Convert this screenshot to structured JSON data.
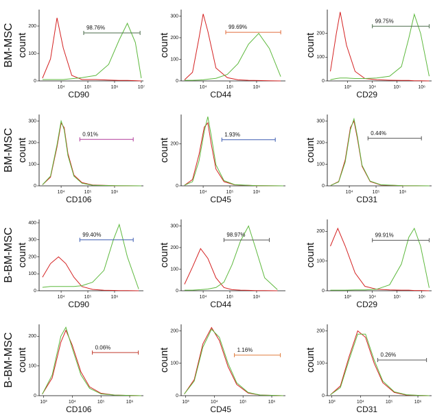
{
  "chart_data": [
    {
      "type": "line",
      "row_label": "BM-MSC",
      "ylabel": "count",
      "xlabel": "CD90",
      "xscale": "log",
      "xlim": [
        1500,
        12000000
      ],
      "ylim": [
        0,
        260
      ],
      "xticks": [
        {
          "value": 10000,
          "label": "10⁴"
        },
        {
          "value": 100000,
          "label": "10⁵"
        },
        {
          "value": 1000000,
          "label": "10⁶"
        },
        {
          "value": 10000000,
          "label": "10⁷"
        }
      ],
      "yticks": [
        0,
        100,
        200
      ],
      "x": [
        2000,
        4000,
        7000,
        12000,
        25000,
        60000,
        200000,
        600000,
        1500000,
        3000000,
        6000000,
        10000000
      ],
      "series": [
        {
          "color": "#d42020",
          "values": [
            10,
            80,
            230,
            120,
            20,
            5,
            5,
            3,
            2,
            2,
            1,
            0
          ]
        },
        {
          "color": "#5cb83c",
          "values": [
            5,
            5,
            5,
            5,
            8,
            12,
            20,
            60,
            150,
            210,
            140,
            10
          ]
        }
      ],
      "gate": {
        "x": [
          70000,
          9000000
        ],
        "y": 175
      },
      "gate_color": "#4a6a4a",
      "annotation": "98.76%"
    },
    {
      "type": "line",
      "ylabel": "count",
      "xlabel": "CD44",
      "xscale": "log",
      "xlim": [
        1500,
        12000000
      ],
      "ylim": [
        0,
        330
      ],
      "xticks": [
        {
          "value": 10000,
          "label": "10⁴"
        },
        {
          "value": 100000,
          "label": "10⁵"
        },
        {
          "value": 1000000,
          "label": "10⁶"
        }
      ],
      "yticks": [
        0,
        100,
        200,
        300
      ],
      "x": [
        2000,
        4000,
        7000,
        10000,
        15000,
        30000,
        80000,
        200000,
        500000,
        1200000,
        3000000,
        8000000
      ],
      "series": [
        {
          "color": "#d42020",
          "values": [
            5,
            40,
            200,
            310,
            230,
            60,
            15,
            5,
            3,
            2,
            1,
            0
          ]
        },
        {
          "color": "#5cb83c",
          "values": [
            3,
            3,
            4,
            5,
            8,
            12,
            30,
            80,
            170,
            220,
            150,
            20
          ]
        }
      ],
      "gate": {
        "x": [
          70000,
          8000000
        ],
        "y": 225
      },
      "gate_color": "#e06a3a",
      "annotation": "99.69%"
    },
    {
      "type": "line",
      "ylabel": "count",
      "xlabel": "CD29",
      "xscale": "log",
      "xlim": [
        150,
        2500000
      ],
      "ylim": [
        0,
        300
      ],
      "xticks": [
        {
          "value": 1000,
          "label": "10³"
        },
        {
          "value": 10000,
          "label": "10⁴"
        },
        {
          "value": 100000,
          "label": "10⁵"
        },
        {
          "value": 1000000,
          "label": "10⁶"
        }
      ],
      "yticks": [
        0,
        100,
        200
      ],
      "x": [
        200,
        350,
        500,
        900,
        2000,
        5000,
        15000,
        50000,
        150000,
        300000,
        500000,
        900000,
        2000000
      ],
      "series": [
        {
          "color": "#d42020",
          "values": [
            40,
            200,
            290,
            150,
            40,
            10,
            5,
            3,
            2,
            2,
            1,
            1,
            0
          ]
        },
        {
          "color": "#5cb83c",
          "values": [
            5,
            10,
            12,
            12,
            10,
            10,
            12,
            20,
            60,
            180,
            280,
            200,
            20
          ]
        }
      ],
      "gate": {
        "x": [
          10000,
          2000000
        ],
        "y": 230
      },
      "gate_color": "#4a6a4a",
      "annotation": "99.75%"
    },
    {
      "type": "line",
      "row_label": "BM-MSC",
      "ylabel": "count",
      "xlabel": "CD106",
      "xscale": "log",
      "xlim": [
        1500,
        12000000
      ],
      "ylim": [
        0,
        330
      ],
      "xticks": [
        {
          "value": 10000,
          "label": "10⁴"
        },
        {
          "value": 100000,
          "label": "10⁵"
        },
        {
          "value": 1000000,
          "label": "10⁶"
        }
      ],
      "yticks": [
        0,
        100,
        200,
        300
      ],
      "x": [
        2000,
        4000,
        7000,
        10000,
        13000,
        18000,
        30000,
        60000,
        150000,
        1000000,
        10000000
      ],
      "series": [
        {
          "color": "#d42020",
          "values": [
            5,
            40,
            180,
            290,
            270,
            150,
            50,
            15,
            4,
            1,
            0
          ]
        },
        {
          "color": "#5cb83c",
          "values": [
            5,
            45,
            190,
            300,
            260,
            140,
            45,
            12,
            3,
            1,
            0
          ]
        }
      ],
      "gate": {
        "x": [
          50000,
          5000000
        ],
        "y": 215
      },
      "gate_color": "#b03a9a",
      "annotation": "0.91%"
    },
    {
      "type": "line",
      "ylabel": "count",
      "xlabel": "CD45",
      "xscale": "log",
      "xlim": [
        1500,
        12000000
      ],
      "ylim": [
        0,
        340
      ],
      "xticks": [
        {
          "value": 10000,
          "label": "10⁴"
        },
        {
          "value": 100000,
          "label": "10⁵"
        },
        {
          "value": 1000000,
          "label": "10⁶"
        }
      ],
      "yticks": [
        0,
        200
      ],
      "x": [
        2000,
        4000,
        7000,
        11000,
        15000,
        20000,
        30000,
        60000,
        150000,
        1000000,
        10000000
      ],
      "series": [
        {
          "color": "#d42020",
          "values": [
            3,
            30,
            150,
            280,
            300,
            200,
            80,
            20,
            5,
            1,
            0
          ]
        },
        {
          "color": "#5cb83c",
          "values": [
            3,
            20,
            120,
            260,
            330,
            240,
            100,
            25,
            6,
            1,
            0
          ]
        }
      ],
      "gate": {
        "x": [
          50000,
          5000000
        ],
        "y": 220
      },
      "gate_color": "#3a5ab0",
      "annotation": "1.93%"
    },
    {
      "type": "line",
      "ylabel": "count",
      "xlabel": "CD31",
      "xscale": "log",
      "xlim": [
        1500,
        12000000
      ],
      "ylim": [
        0,
        330
      ],
      "xticks": [
        {
          "value": 10000,
          "label": "10⁴"
        },
        {
          "value": 100000,
          "label": "10⁵"
        },
        {
          "value": 1000000,
          "label": "10⁶"
        }
      ],
      "yticks": [
        0,
        100,
        200,
        300
      ],
      "x": [
        2000,
        4000,
        7000,
        11000,
        15000,
        20000,
        30000,
        60000,
        150000,
        1000000,
        10000000
      ],
      "series": [
        {
          "color": "#d42020",
          "values": [
            2,
            20,
            120,
            270,
            300,
            220,
            90,
            20,
            4,
            1,
            0
          ]
        },
        {
          "color": "#5cb83c",
          "values": [
            2,
            18,
            110,
            260,
            310,
            230,
            95,
            22,
            5,
            1,
            0
          ]
        }
      ],
      "gate": {
        "x": [
          50000,
          5000000
        ],
        "y": 220
      },
      "gate_color": "#555555",
      "annotation": "0.44%"
    },
    {
      "type": "line",
      "row_label": "B-BM-MSC",
      "ylabel": "count",
      "xlabel": "CD90",
      "xscale": "log",
      "xlim": [
        1500,
        12000000
      ],
      "ylim": [
        0,
        420
      ],
      "xticks": [
        {
          "value": 10000,
          "label": "10⁴"
        },
        {
          "value": 100000,
          "label": "10⁵"
        },
        {
          "value": 1000000,
          "label": "10⁶"
        }
      ],
      "yticks": [
        0,
        100,
        200,
        300,
        400
      ],
      "x": [
        2000,
        4000,
        8000,
        15000,
        30000,
        60000,
        150000,
        400000,
        900000,
        1500000,
        3000000,
        8000000
      ],
      "series": [
        {
          "color": "#d42020",
          "values": [
            80,
            160,
            200,
            160,
            80,
            25,
            8,
            3,
            2,
            1,
            1,
            0
          ]
        },
        {
          "color": "#5cb83c",
          "values": [
            20,
            25,
            25,
            25,
            25,
            30,
            50,
            120,
            300,
            390,
            200,
            10
          ]
        }
      ],
      "gate": {
        "x": [
          50000,
          5000000
        ],
        "y": 300
      },
      "gate_color": "#3a5ab0",
      "annotation": "99.40%"
    },
    {
      "type": "line",
      "ylabel": "count",
      "xlabel": "CD44",
      "xscale": "log",
      "xlim": [
        1500,
        12000000
      ],
      "ylim": [
        0,
        330
      ],
      "xticks": [
        {
          "value": 10000,
          "label": "10⁴"
        },
        {
          "value": 100000,
          "label": "10⁵"
        },
        {
          "value": 1000000,
          "label": "10⁶"
        }
      ],
      "yticks": [
        0,
        100,
        200,
        300
      ],
      "x": [
        2000,
        4000,
        8000,
        15000,
        30000,
        60000,
        120000,
        250000,
        500000,
        900000,
        2000000,
        6000000
      ],
      "series": [
        {
          "color": "#d42020",
          "values": [
            30,
            110,
            195,
            150,
            60,
            15,
            5,
            3,
            2,
            1,
            1,
            0
          ]
        },
        {
          "color": "#5cb83c",
          "values": [
            3,
            3,
            5,
            8,
            15,
            40,
            120,
            230,
            300,
            200,
            60,
            5
          ]
        }
      ],
      "gate": {
        "x": [
          60000,
          3000000
        ],
        "y": 235
      },
      "gate_color": "#555555",
      "annotation": "98.97%"
    },
    {
      "type": "line",
      "ylabel": "count",
      "xlabel": "CD29",
      "xscale": "log",
      "xlim": [
        150,
        2500000
      ],
      "ylim": [
        0,
        240
      ],
      "xticks": [
        {
          "value": 1000,
          "label": "10³"
        },
        {
          "value": 10000,
          "label": "10⁴"
        },
        {
          "value": 100000,
          "label": "10⁵"
        },
        {
          "value": 1000000,
          "label": "10⁶"
        }
      ],
      "yticks": [
        0,
        100,
        200
      ],
      "x": [
        200,
        400,
        800,
        2000,
        5000,
        15000,
        50000,
        150000,
        300000,
        500000,
        900000,
        2000000
      ],
      "series": [
        {
          "color": "#d42020",
          "values": [
            150,
            210,
            150,
            60,
            15,
            5,
            3,
            2,
            2,
            1,
            1,
            0
          ]
        },
        {
          "color": "#5cb83c",
          "values": [
            2,
            2,
            2,
            3,
            3,
            5,
            20,
            90,
            180,
            210,
            150,
            10
          ]
        }
      ],
      "gate": {
        "x": [
          10000,
          2000000
        ],
        "y": 170
      },
      "gate_color": "#555555",
      "annotation": "99.91%"
    },
    {
      "type": "line",
      "row_label": "B-BM-MSC",
      "ylabel": "count",
      "xlabel": "CD106",
      "xscale": "log",
      "xlim": [
        700,
        3000000
      ],
      "ylim": [
        0,
        240
      ],
      "xticks": [
        {
          "value": 1000,
          "label": "10³"
        },
        {
          "value": 10000,
          "label": "10⁴"
        },
        {
          "value": 100000,
          "label": "10⁵"
        },
        {
          "value": 1000000,
          "label": "10⁶"
        }
      ],
      "yticks": [
        0,
        100,
        200
      ],
      "x": [
        900,
        2000,
        4000,
        6000,
        10000,
        20000,
        40000,
        100000,
        300000,
        1000000,
        2500000
      ],
      "series": [
        {
          "color": "#d42020",
          "values": [
            5,
            60,
            180,
            220,
            170,
            80,
            30,
            8,
            2,
            1,
            0
          ]
        },
        {
          "color": "#5cb83c",
          "values": [
            5,
            70,
            200,
            230,
            160,
            70,
            25,
            6,
            2,
            1,
            0
          ]
        }
      ],
      "gate": {
        "x": [
          50000,
          2000000
        ],
        "y": 145
      },
      "gate_color": "#c0392b",
      "annotation": "0.06%"
    },
    {
      "type": "line",
      "ylabel": "count",
      "xlabel": "CD45",
      "xscale": "log",
      "xlim": [
        700,
        3000000
      ],
      "ylim": [
        0,
        220
      ],
      "xticks": [
        {
          "value": 1000,
          "label": "10³"
        },
        {
          "value": 10000,
          "label": "10⁴"
        },
        {
          "value": 100000,
          "label": "10⁵"
        },
        {
          "value": 1000000,
          "label": "10⁶"
        }
      ],
      "yticks": [
        0,
        100,
        200
      ],
      "x": [
        900,
        2000,
        4000,
        8000,
        15000,
        30000,
        60000,
        150000,
        400000,
        1000000,
        2500000
      ],
      "series": [
        {
          "color": "#d42020",
          "values": [
            5,
            50,
            160,
            210,
            170,
            90,
            35,
            8,
            2,
            1,
            0
          ]
        },
        {
          "color": "#5cb83c",
          "values": [
            5,
            45,
            150,
            205,
            180,
            100,
            40,
            10,
            2,
            1,
            0
          ]
        }
      ],
      "gate": {
        "x": [
          50000,
          2000000
        ],
        "y": 125
      },
      "gate_color": "#e07a3a",
      "annotation": "1.16%"
    },
    {
      "type": "line",
      "ylabel": "count",
      "xlabel": "CD31",
      "xscale": "log",
      "xlim": [
        700,
        3000000
      ],
      "ylim": [
        0,
        220
      ],
      "xticks": [
        {
          "value": 1000,
          "label": "10³"
        },
        {
          "value": 10000,
          "label": "10⁴"
        },
        {
          "value": 100000,
          "label": "10⁵"
        },
        {
          "value": 1000000,
          "label": "10⁶"
        }
      ],
      "yticks": [
        0,
        100,
        200
      ],
      "x": [
        900,
        2000,
        4000,
        8000,
        15000,
        30000,
        60000,
        150000,
        400000,
        1000000,
        2500000
      ],
      "series": [
        {
          "color": "#d42020",
          "values": [
            3,
            30,
            120,
            200,
            180,
            100,
            40,
            10,
            2,
            1,
            0
          ]
        },
        {
          "color": "#5cb83c",
          "values": [
            3,
            25,
            110,
            190,
            190,
            110,
            45,
            12,
            3,
            1,
            0
          ]
        }
      ],
      "gate": {
        "x": [
          40000,
          2000000
        ],
        "y": 110
      },
      "gate_color": "#555555",
      "annotation": "0.26%"
    }
  ]
}
